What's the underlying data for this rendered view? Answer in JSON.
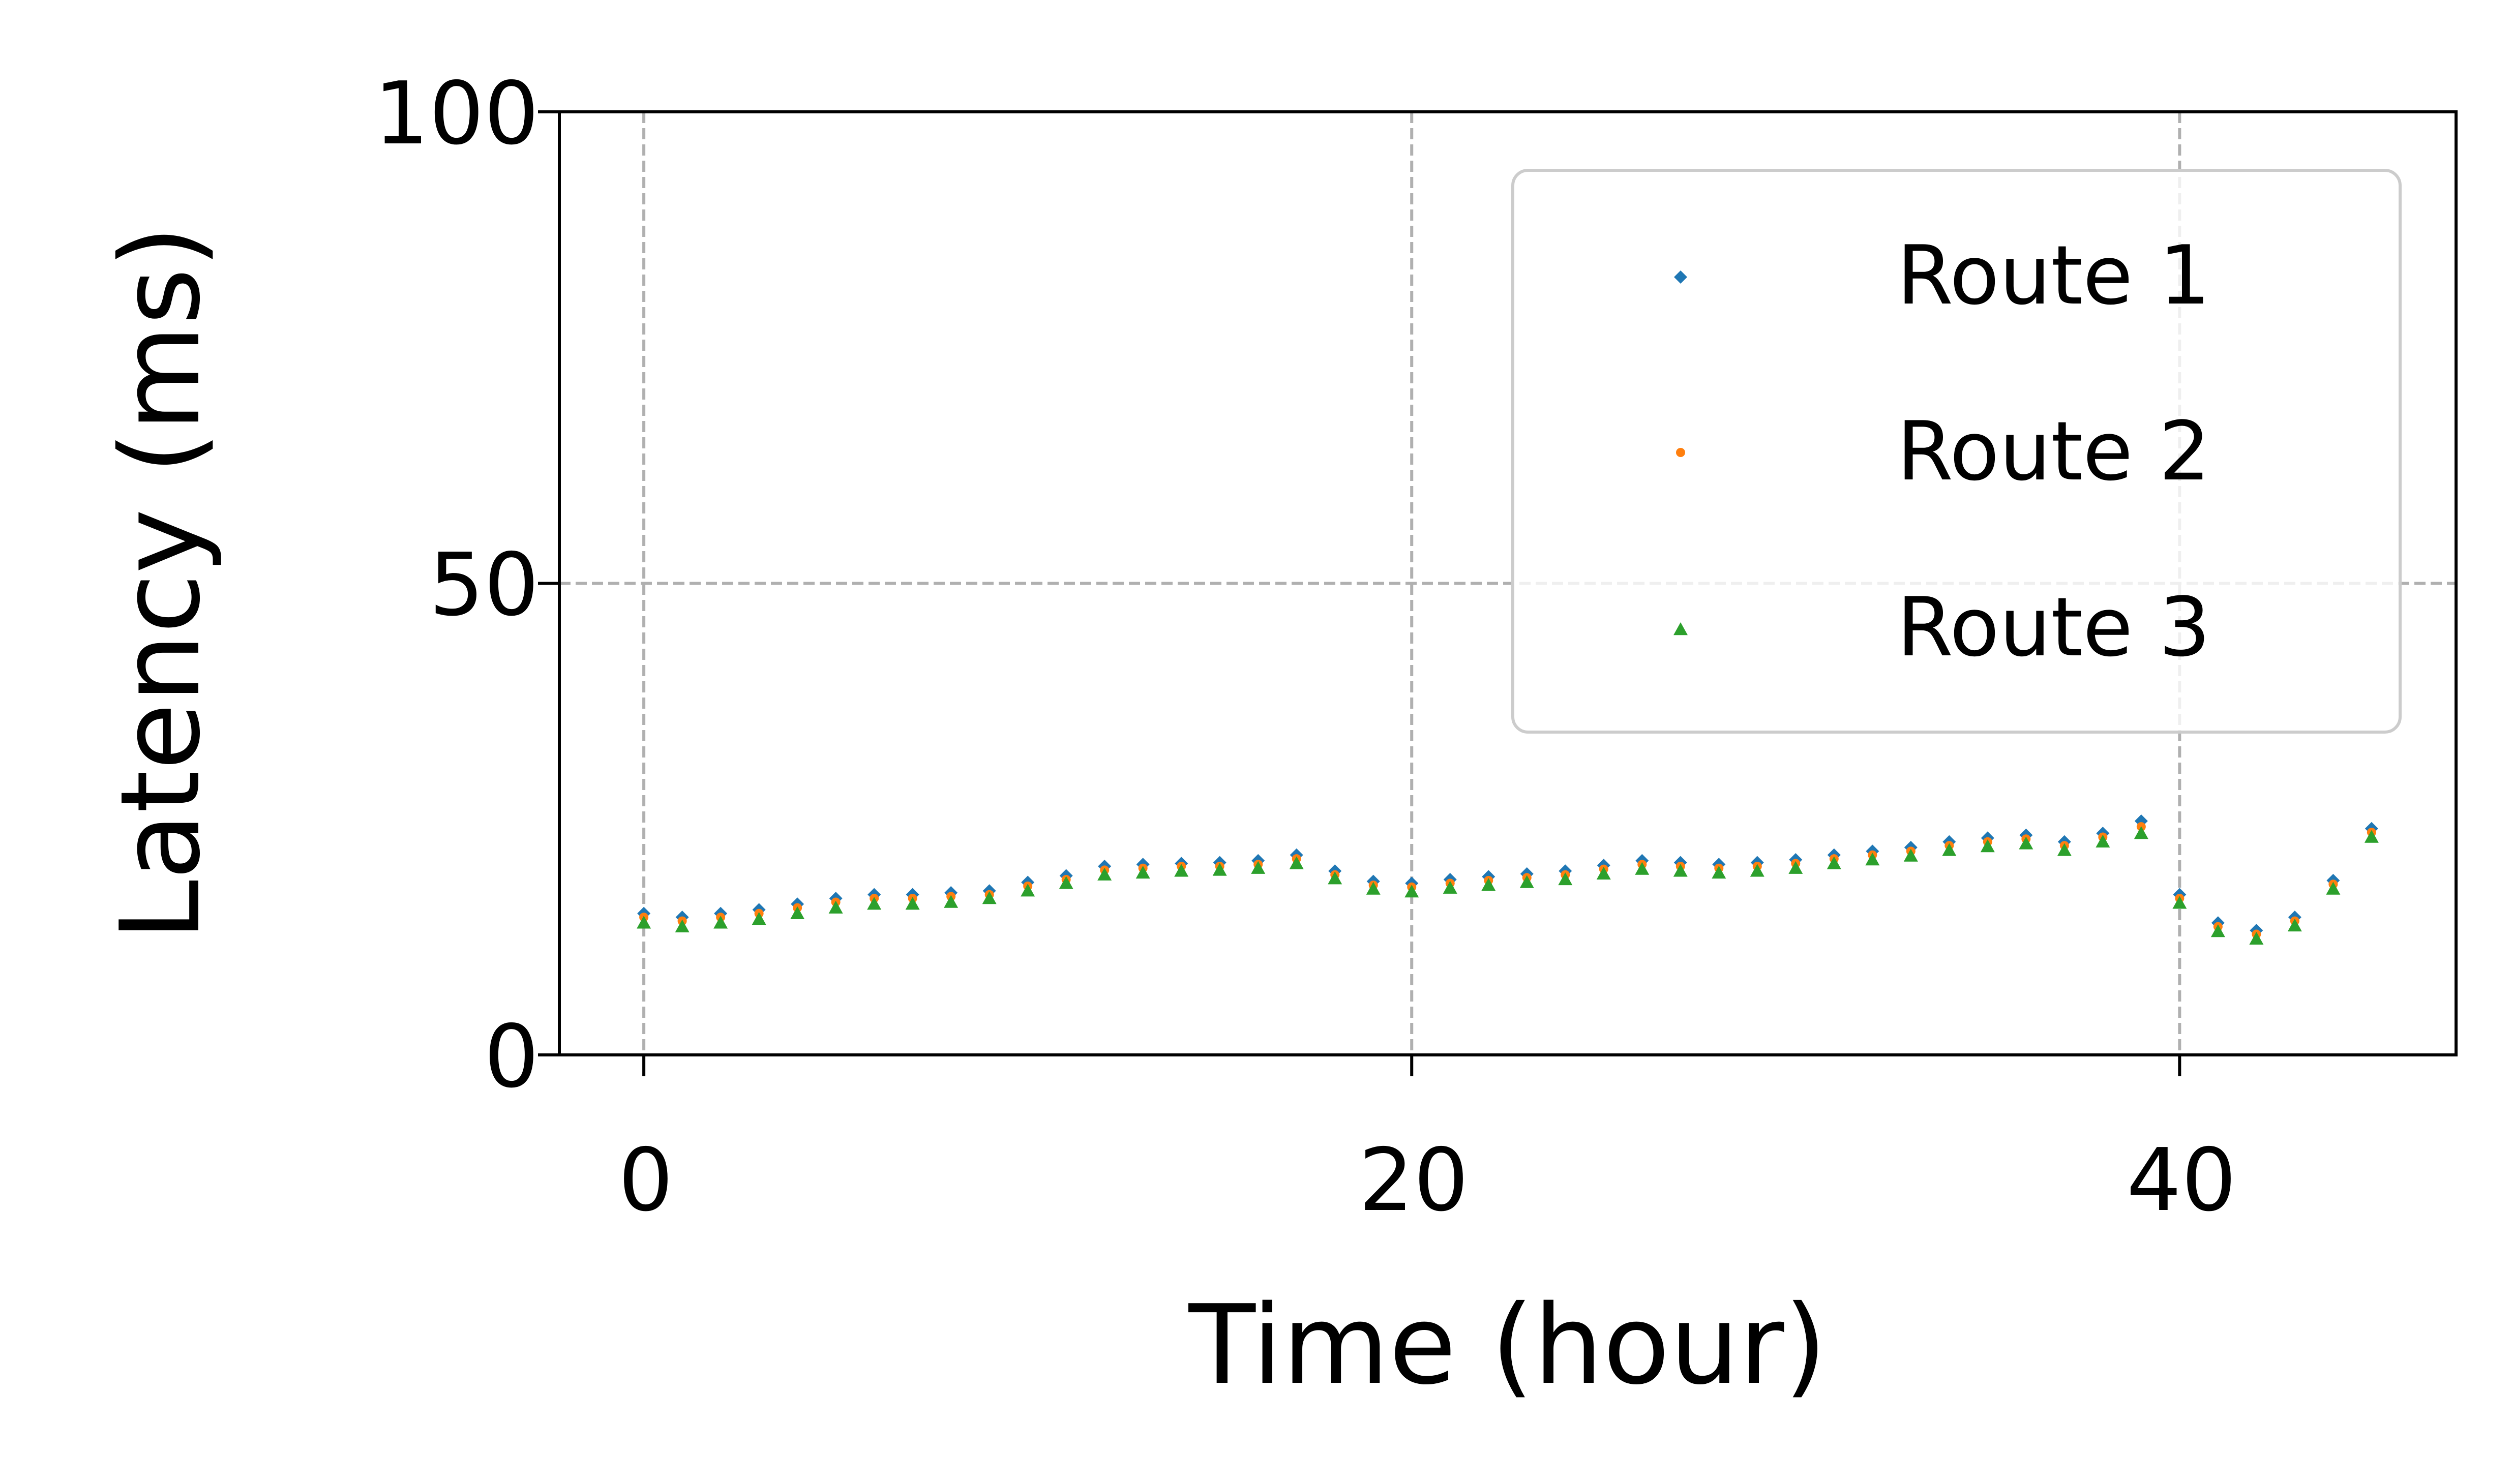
{
  "chart_data": {
    "type": "scatter",
    "xlabel": "Time (hour)",
    "ylabel": "Latency (ms)",
    "xlim": [
      -2.2,
      47.2
    ],
    "ylim": [
      0,
      100
    ],
    "x_ticks": [
      "0",
      "20",
      "40"
    ],
    "y_ticks": [
      "0",
      "50",
      "100"
    ],
    "grid": true,
    "legend_position": "upper right",
    "series": [
      {
        "name": "Route 1",
        "color": "#1f77b4",
        "marker": "diamond",
        "x": [
          0.0,
          1.0,
          2.0,
          3.0,
          4.0,
          5.0,
          6.0,
          7.0,
          8.0,
          9.0,
          10.0,
          11.0,
          12.0,
          13.0,
          14.0,
          15.0,
          16.0,
          17.0,
          18.0,
          19.0,
          20.0,
          21.0,
          22.0,
          23.0,
          24.0,
          25.0,
          26.0,
          27.0,
          28.0,
          29.0,
          30.0,
          31.0,
          32.0,
          33.0,
          34.0,
          35.0,
          36.0,
          37.0,
          38.0,
          39.0,
          40.0,
          41.0,
          42.0,
          43.0,
          44.0,
          45.0
        ],
        "y": [
          15.0,
          14.6,
          15.0,
          15.4,
          16.0,
          16.6,
          17.0,
          17.0,
          17.2,
          17.4,
          18.3,
          19.0,
          20.0,
          20.2,
          20.3,
          20.4,
          20.6,
          21.2,
          19.5,
          18.4,
          18.2,
          18.6,
          18.9,
          19.2,
          19.5,
          20.1,
          20.6,
          20.4,
          20.2,
          20.4,
          20.7,
          21.2,
          21.6,
          22.0,
          22.6,
          23.0,
          23.3,
          22.6,
          23.5,
          24.8,
          17.0,
          14.0,
          13.2,
          14.6,
          18.5,
          24.0
        ]
      },
      {
        "name": "Route 2",
        "color": "#ff7f0e",
        "marker": "circle",
        "x": [
          0.0,
          1.0,
          2.0,
          3.0,
          4.0,
          5.0,
          6.0,
          7.0,
          8.0,
          9.0,
          10.0,
          11.0,
          12.0,
          13.0,
          14.0,
          15.0,
          16.0,
          17.0,
          18.0,
          19.0,
          20.0,
          21.0,
          22.0,
          23.0,
          24.0,
          25.0,
          26.0,
          27.0,
          28.0,
          29.0,
          30.0,
          31.0,
          32.0,
          33.0,
          34.0,
          35.0,
          36.0,
          37.0,
          38.0,
          39.0,
          40.0,
          41.0,
          42.0,
          43.0,
          44.0,
          45.0
        ],
        "y": [
          14.6,
          14.2,
          14.6,
          15.0,
          15.6,
          16.2,
          16.6,
          16.6,
          16.8,
          17.0,
          17.9,
          18.6,
          19.6,
          19.8,
          20.0,
          20.0,
          20.2,
          20.8,
          19.1,
          18.0,
          17.8,
          18.2,
          18.5,
          18.8,
          19.1,
          19.7,
          20.2,
          20.0,
          19.8,
          20.0,
          20.3,
          20.8,
          21.2,
          21.6,
          22.2,
          22.6,
          22.9,
          22.2,
          23.1,
          24.2,
          16.6,
          13.6,
          12.8,
          14.2,
          18.1,
          23.6
        ]
      },
      {
        "name": "Route 3",
        "color": "#2ca02c",
        "marker": "triangle",
        "x": [
          0.0,
          1.0,
          2.0,
          3.0,
          4.0,
          5.0,
          6.0,
          7.0,
          8.0,
          9.0,
          10.0,
          11.0,
          12.0,
          13.0,
          14.0,
          15.0,
          16.0,
          17.0,
          18.0,
          19.0,
          20.0,
          21.0,
          22.0,
          23.0,
          24.0,
          25.0,
          26.0,
          27.0,
          28.0,
          29.0,
          30.0,
          31.0,
          32.0,
          33.0,
          34.0,
          35.0,
          36.0,
          37.0,
          38.0,
          39.0,
          40.0,
          41.0,
          42.0,
          43.0,
          44.0,
          45.0
        ],
        "y": [
          14.0,
          13.6,
          14.0,
          14.4,
          15.0,
          15.6,
          16.0,
          16.0,
          16.2,
          16.6,
          17.4,
          18.2,
          19.1,
          19.3,
          19.5,
          19.6,
          19.8,
          20.3,
          18.7,
          17.6,
          17.3,
          17.7,
          18.0,
          18.3,
          18.6,
          19.2,
          19.7,
          19.5,
          19.3,
          19.5,
          19.8,
          20.3,
          20.7,
          21.1,
          21.7,
          22.1,
          22.4,
          21.7,
          22.6,
          23.5,
          16.1,
          13.1,
          12.3,
          13.7,
          17.6,
          23.1
        ]
      }
    ]
  }
}
